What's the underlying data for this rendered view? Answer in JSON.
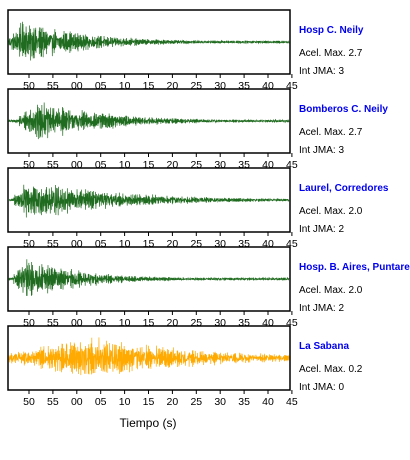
{
  "chart_data": {
    "type": "line",
    "xlabel": "Tiempo (s)",
    "tick_labels": [
      "50",
      "55",
      "00",
      "05",
      "10",
      "15",
      "20",
      "25",
      "30",
      "35",
      "40",
      "45"
    ],
    "trace_colors": {
      "default": "#1f6b1f",
      "highlight": "#ffaa00"
    },
    "panels": [
      {
        "station": "Hosp C. Neily",
        "accel": "Acel. Max. 2.7",
        "intensity": "Int JMA: 3",
        "color": "#1f6b1f",
        "accel_max": 2.7,
        "int_jma": 3,
        "envelope_peak": 0.95,
        "decay": 0.07,
        "onset_s": 0,
        "peak_s": 3
      },
      {
        "station": "Bomberos C. Neily",
        "accel": "Acel. Max. 2.7",
        "intensity": "Int JMA: 3",
        "color": "#1f6b1f",
        "accel_max": 2.7,
        "int_jma": 3,
        "envelope_peak": 0.9,
        "decay": 0.065,
        "onset_s": 2,
        "peak_s": 6
      },
      {
        "station": "Laurel, Corredores",
        "accel": "Acel. Max. 2.0",
        "intensity": "Int JMA: 2",
        "color": "#1f6b1f",
        "accel_max": 2.0,
        "int_jma": 2,
        "envelope_peak": 0.92,
        "decay": 0.05,
        "onset_s": 1,
        "peak_s": 4
      },
      {
        "station": "Hosp. B. Aires, Puntarenas",
        "accel": "Acel. Max. 2.0",
        "intensity": "Int JMA: 2",
        "color": "#1f6b1f",
        "accel_max": 2.0,
        "int_jma": 2,
        "envelope_peak": 0.9,
        "decay": 0.08,
        "onset_s": 1,
        "peak_s": 4
      },
      {
        "station": "La Sabana",
        "accel": "Acel. Max. 0.2",
        "intensity": "Int JMA: 0",
        "color": "#ffaa00",
        "accel_max": 0.2,
        "int_jma": 0,
        "envelope_peak": 0.95,
        "decay": 0.045,
        "onset_s": 0,
        "peak_s": 19
      }
    ]
  }
}
